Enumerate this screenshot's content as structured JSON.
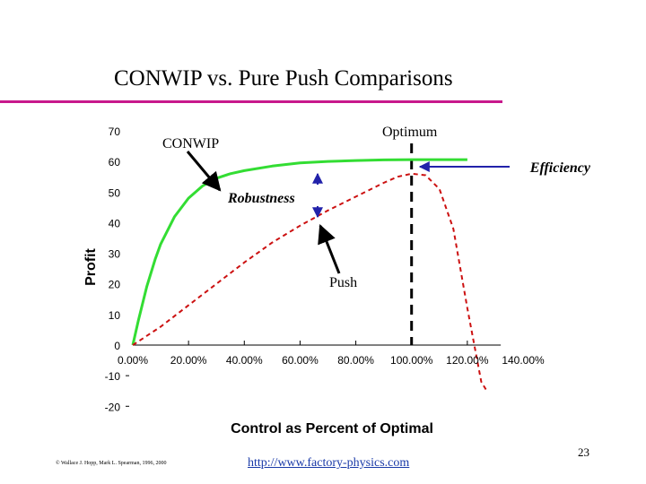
{
  "slide": {
    "title": "CONWIP vs. Pure Push Comparisons",
    "page_number": "23",
    "copyright": "© Wallace J. Hopp, Mark L. Spearman, 1996, 2000",
    "url": "http://www.factory-physics.com",
    "title_rule_color": "#c8188c"
  },
  "chart_data": {
    "type": "line",
    "title": "",
    "xlabel": "Control as Percent of Optimal",
    "ylabel": "Profit",
    "xlim": [
      0,
      1.4
    ],
    "ylim": [
      -20,
      70
    ],
    "x_tick_labels": [
      "0.00%",
      "20.00%",
      "40.00%",
      "60.00%",
      "80.00%",
      "100.00%",
      "120.00%",
      "140.00%"
    ],
    "y_tick_labels": [
      "70",
      "60",
      "50",
      "40",
      "30",
      "20",
      "10",
      "0",
      "-10",
      "-20"
    ],
    "series": [
      {
        "name": "CONWIP",
        "color": "#33dd33",
        "style": "solid",
        "x": [
          0,
          0.02,
          0.05,
          0.08,
          0.1,
          0.15,
          0.2,
          0.25,
          0.3,
          0.35,
          0.4,
          0.5,
          0.6,
          0.7,
          0.8,
          0.9,
          1.0,
          1.1,
          1.2
        ],
        "y": [
          0,
          8,
          19,
          28,
          33,
          42,
          48,
          52,
          54.5,
          56,
          57,
          58.5,
          59.5,
          60,
          60.3,
          60.5,
          60.6,
          60.6,
          60.6
        ]
      },
      {
        "name": "Push",
        "color": "#cc1111",
        "style": "dashed",
        "x": [
          0,
          0.1,
          0.2,
          0.3,
          0.4,
          0.5,
          0.6,
          0.7,
          0.8,
          0.9,
          0.95,
          1.0,
          1.05,
          1.1,
          1.15,
          1.2,
          1.25,
          1.27
        ],
        "y": [
          0,
          6,
          13,
          20,
          27,
          33.5,
          39,
          44,
          48.5,
          53,
          55,
          56,
          55.5,
          51,
          38,
          12,
          -12,
          -15
        ]
      }
    ],
    "annotations": {
      "conwip": "CONWIP",
      "optimum": "Optimum",
      "efficiency": "Efficiency",
      "robustness": "Robustness",
      "push": "Push"
    },
    "optimum_x": 1.0,
    "grid": false
  }
}
